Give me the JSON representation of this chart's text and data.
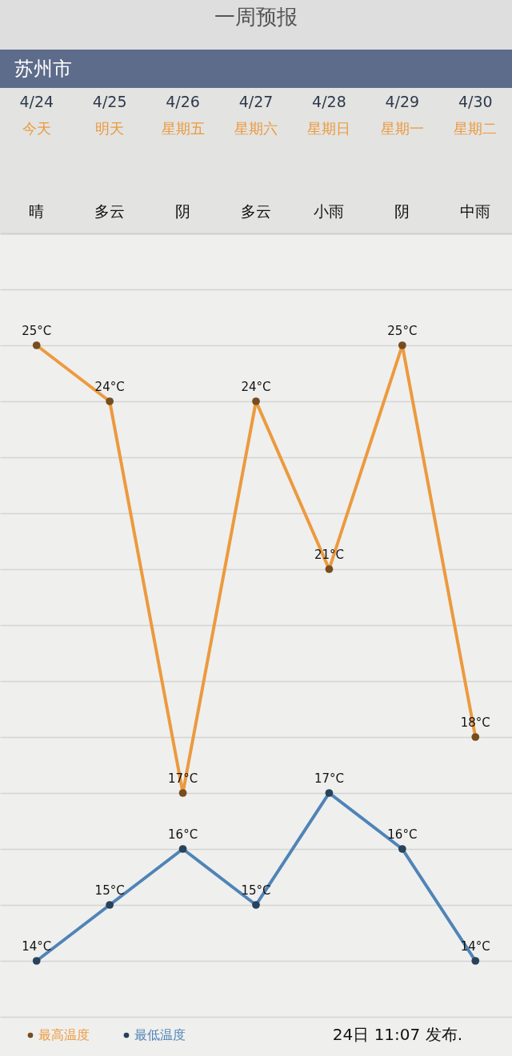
{
  "chart_data": {
    "type": "line",
    "title": "一周预报",
    "subtitle": "苏州市",
    "categories": [
      "4/24",
      "4/25",
      "4/26",
      "4/27",
      "4/28",
      "4/29",
      "4/30"
    ],
    "series": [
      {
        "name": "最高温度",
        "color": "#ec9a3e",
        "values": [
          25,
          24,
          17,
          24,
          21,
          25,
          18
        ],
        "value_labels": [
          "25°C",
          "24°C",
          "17°C",
          "24°C",
          "21°C",
          "25°C",
          "18°C"
        ]
      },
      {
        "name": "最低温度",
        "color": "#4f84b6",
        "values": [
          14,
          15,
          16,
          15,
          17,
          16,
          14
        ],
        "value_labels": [
          "14°C",
          "15°C",
          "16°C",
          "15°C",
          "17°C",
          "16°C",
          "14°C"
        ]
      }
    ],
    "ylim": [
      12.3,
      27
    ],
    "yticks": [
      {
        "value": 13,
        "label": null
      },
      {
        "value": 14,
        "label": null
      },
      {
        "value": 15,
        "label": null
      },
      {
        "value": 16,
        "label": null
      },
      {
        "value": 17,
        "label": null
      },
      {
        "value": 18,
        "label": null
      },
      {
        "value": 19,
        "label": null
      },
      {
        "value": 20,
        "label": null
      },
      {
        "value": 21,
        "label": null
      },
      {
        "value": 22,
        "label": null
      },
      {
        "value": 23,
        "label": null
      },
      {
        "value": 24,
        "label": null
      },
      {
        "value": 25,
        "label": null
      },
      {
        "value": 26,
        "label": null
      }
    ],
    "grid": "y",
    "legend": "bottom left",
    "tick_labels": "x",
    "marker": "circle",
    "line_style": "solid",
    "annotations": [
      "今天",
      "明天",
      "星期五",
      "星期六",
      "星期日",
      "星期一",
      "星期二",
      "晴",
      "多云",
      "阴",
      "多云",
      "小雨",
      "阴",
      "中雨",
      "24日 11:07 发布."
    ]
  }
}
